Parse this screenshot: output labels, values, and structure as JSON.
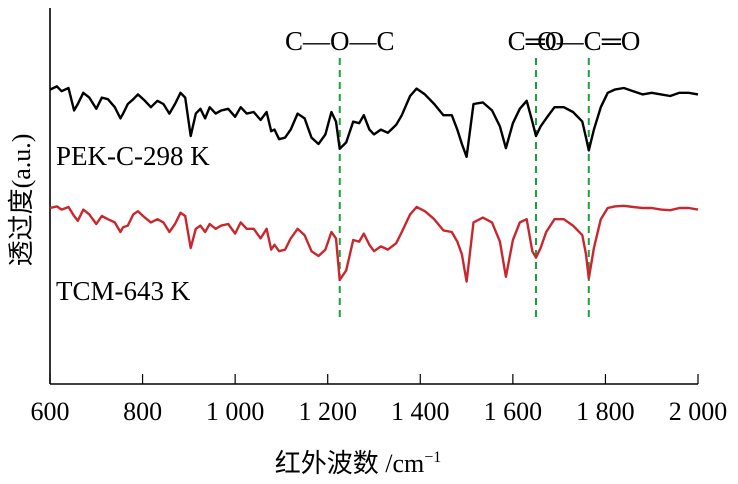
{
  "chart_data": {
    "type": "line",
    "xlabel": "红外波数 /cm",
    "xlabel_sup": "−1",
    "ylabel": "透过度(a.u.)",
    "xlim": [
      600,
      2000
    ],
    "ylim": [
      0,
      1
    ],
    "y_ticks_shown": false,
    "grid": false,
    "x_ticks": [
      600,
      800,
      1000,
      1200,
      1400,
      1600,
      1800,
      2000
    ],
    "x_tick_labels": [
      "600",
      "800",
      "1 000",
      "1 200",
      "1 400",
      "1 600",
      "1 800",
      "2 000"
    ],
    "annotations": [
      {
        "label": "C—O—C",
        "x": 1226
      },
      {
        "label": "C═O",
        "x": 1650
      },
      {
        "label": "O—C═O",
        "x": 1764
      }
    ],
    "series": [
      {
        "name": "PEK-C-298 K",
        "color": "#000000",
        "x": [
          600,
          615,
          625,
          640,
          652,
          660,
          672,
          685,
          700,
          712,
          725,
          740,
          752,
          758,
          768,
          780,
          790,
          805,
          818,
          832,
          845,
          858,
          870,
          882,
          892,
          904,
          915,
          925,
          935,
          945,
          958,
          970,
          985,
          1000,
          1012,
          1025,
          1040,
          1055,
          1068,
          1078,
          1085,
          1095,
          1108,
          1120,
          1135,
          1150,
          1165,
          1180,
          1195,
          1208,
          1218,
          1226,
          1240,
          1255,
          1268,
          1278,
          1290,
          1300,
          1315,
          1330,
          1348,
          1360,
          1378,
          1392,
          1410,
          1430,
          1450,
          1468,
          1480,
          1490,
          1500,
          1515,
          1535,
          1555,
          1572,
          1585,
          1600,
          1615,
          1630,
          1642,
          1650,
          1660,
          1672,
          1690,
          1710,
          1730,
          1750,
          1758,
          1764,
          1775,
          1790,
          1805,
          1820,
          1840,
          1860,
          1880,
          1900,
          1920,
          1940,
          1960,
          1980,
          2000
        ],
        "values": [
          0.845,
          0.855,
          0.84,
          0.85,
          0.78,
          0.8,
          0.835,
          0.82,
          0.785,
          0.82,
          0.815,
          0.79,
          0.755,
          0.77,
          0.8,
          0.815,
          0.83,
          0.81,
          0.79,
          0.81,
          0.8,
          0.77,
          0.8,
          0.835,
          0.82,
          0.7,
          0.77,
          0.785,
          0.755,
          0.79,
          0.77,
          0.78,
          0.785,
          0.76,
          0.79,
          0.77,
          0.775,
          0.75,
          0.775,
          0.715,
          0.72,
          0.69,
          0.695,
          0.72,
          0.77,
          0.755,
          0.695,
          0.675,
          0.705,
          0.775,
          0.745,
          0.66,
          0.68,
          0.745,
          0.74,
          0.765,
          0.72,
          0.705,
          0.72,
          0.71,
          0.735,
          0.765,
          0.825,
          0.848,
          0.83,
          0.8,
          0.765,
          0.765,
          0.72,
          0.675,
          0.635,
          0.8,
          0.805,
          0.78,
          0.73,
          0.662,
          0.74,
          0.785,
          0.81,
          0.745,
          0.7,
          0.73,
          0.755,
          0.79,
          0.79,
          0.775,
          0.745,
          0.695,
          0.655,
          0.72,
          0.79,
          0.835,
          0.845,
          0.85,
          0.84,
          0.83,
          0.835,
          0.83,
          0.825,
          0.835,
          0.835,
          0.83
        ],
        "label_position": "left, above curve"
      },
      {
        "name": "TCM-643 K",
        "color": "#c8282d",
        "x": [
          600,
          615,
          625,
          640,
          652,
          660,
          672,
          685,
          700,
          712,
          725,
          740,
          752,
          758,
          768,
          780,
          790,
          805,
          818,
          832,
          845,
          858,
          870,
          882,
          892,
          904,
          915,
          925,
          935,
          945,
          958,
          970,
          985,
          1000,
          1012,
          1025,
          1040,
          1055,
          1068,
          1078,
          1085,
          1095,
          1108,
          1120,
          1135,
          1150,
          1165,
          1180,
          1195,
          1208,
          1218,
          1226,
          1240,
          1255,
          1268,
          1278,
          1290,
          1300,
          1315,
          1330,
          1348,
          1360,
          1378,
          1392,
          1410,
          1430,
          1450,
          1468,
          1480,
          1490,
          1500,
          1515,
          1535,
          1555,
          1572,
          1585,
          1600,
          1615,
          1630,
          1642,
          1650,
          1660,
          1672,
          1690,
          1710,
          1730,
          1750,
          1758,
          1764,
          1775,
          1790,
          1805,
          1820,
          1840,
          1860,
          1880,
          1900,
          1920,
          1940,
          1960,
          1980,
          2000
        ],
        "values": [
          0.475,
          0.48,
          0.47,
          0.478,
          0.45,
          0.435,
          0.47,
          0.455,
          0.425,
          0.45,
          0.44,
          0.43,
          0.4,
          0.415,
          0.42,
          0.455,
          0.465,
          0.445,
          0.43,
          0.44,
          0.43,
          0.4,
          0.425,
          0.46,
          0.45,
          0.35,
          0.41,
          0.42,
          0.4,
          0.425,
          0.41,
          0.42,
          0.425,
          0.395,
          0.43,
          0.41,
          0.41,
          0.38,
          0.41,
          0.345,
          0.36,
          0.34,
          0.345,
          0.38,
          0.41,
          0.39,
          0.34,
          0.325,
          0.345,
          0.4,
          0.38,
          0.25,
          0.28,
          0.375,
          0.37,
          0.395,
          0.36,
          0.34,
          0.355,
          0.345,
          0.365,
          0.4,
          0.455,
          0.478,
          0.465,
          0.44,
          0.405,
          0.4,
          0.37,
          0.33,
          0.245,
          0.43,
          0.445,
          0.43,
          0.37,
          0.26,
          0.375,
          0.43,
          0.44,
          0.34,
          0.32,
          0.35,
          0.4,
          0.44,
          0.44,
          0.42,
          0.39,
          0.33,
          0.255,
          0.35,
          0.44,
          0.475,
          0.48,
          0.482,
          0.478,
          0.475,
          0.475,
          0.47,
          0.468,
          0.475,
          0.475,
          0.47
        ],
        "label_position": "left, below curve"
      }
    ]
  }
}
